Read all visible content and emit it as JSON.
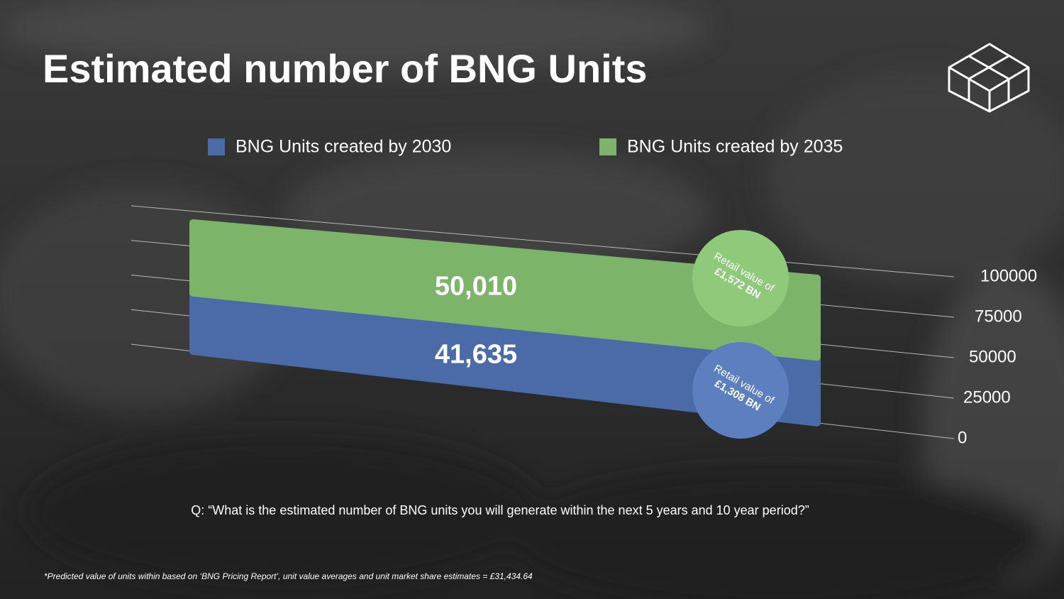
{
  "chart_data": {
    "type": "stacked-bar",
    "title": "Estimated number of BNG Units",
    "series": [
      {
        "name": "BNG Units created by 2030",
        "color": "#4a6aa8",
        "values": [
          41635
        ],
        "value_labels": [
          "41,635"
        ]
      },
      {
        "name": "BNG Units created by 2035",
        "color": "#7cb46a",
        "values": [
          50010
        ],
        "value_labels": [
          "50,010"
        ]
      }
    ],
    "ylim": [
      0,
      100000
    ],
    "yticks": [
      0,
      25000,
      50000,
      75000,
      100000
    ],
    "grid": true,
    "annotations": [
      {
        "lines": [
          "Retail value of",
          "£1,308 BN"
        ],
        "color": "#5b7fbf"
      },
      {
        "lines": [
          "Retail value of",
          "£1,572 BN"
        ],
        "color": "#8fca7a"
      }
    ],
    "question": "Q: “What is the estimated number of BNG units you will generate within the next 5 years and 10 year period?”",
    "footnote": "*Predicted value of units within based on ‘BNG Pricing Report’, unit value averages and unit market share estimates = £31,434.64"
  }
}
